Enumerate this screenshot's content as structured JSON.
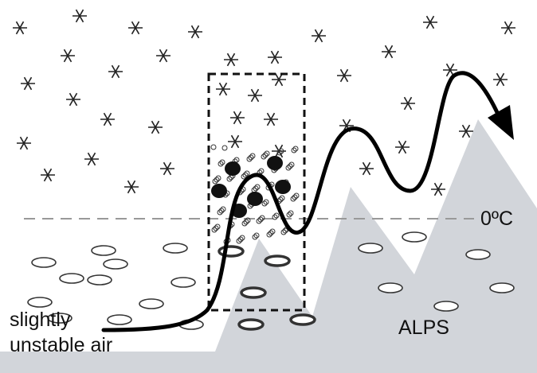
{
  "labels": {
    "air_mass": [
      "slightly",
      "unstable air"
    ],
    "freezing_level": "0ºC",
    "mountains": "ALPS"
  }
}
